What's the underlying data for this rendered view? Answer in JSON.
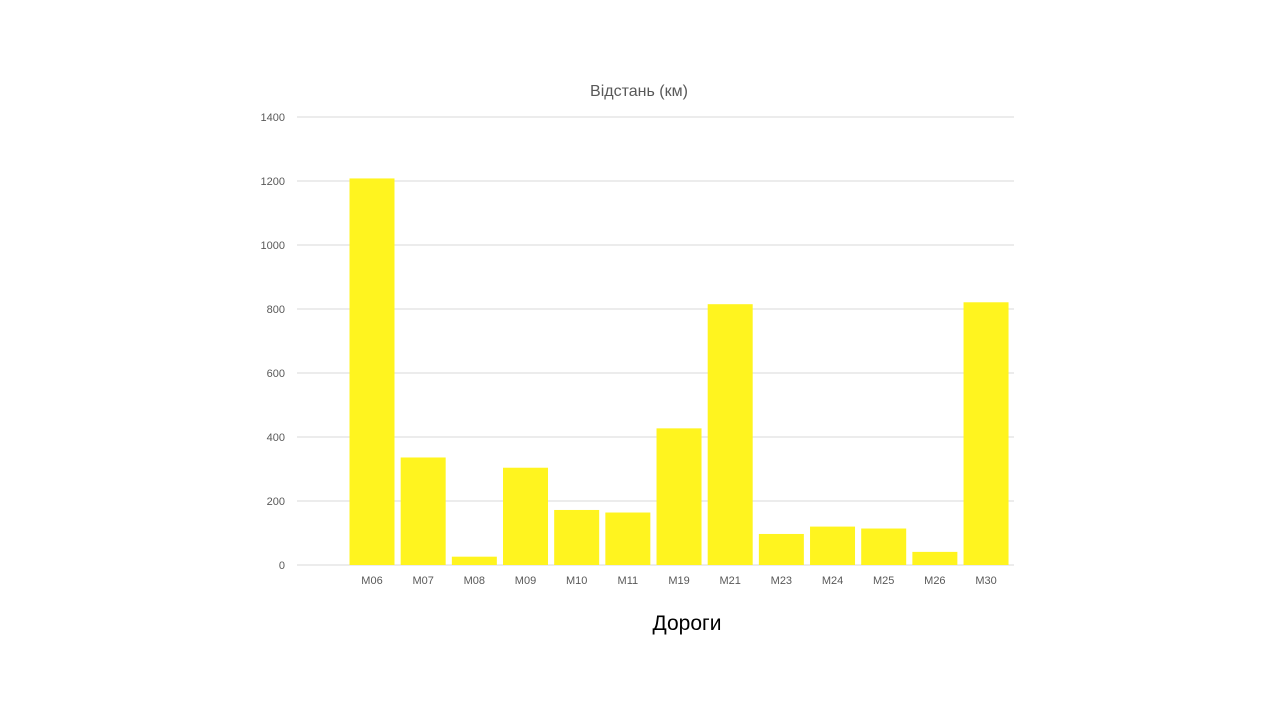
{
  "chart_data": {
    "type": "bar",
    "title": "Відстань (км)",
    "xlabel": "Дороги",
    "ylabel": "",
    "ylim": [
      0,
      1400
    ],
    "yticks": [
      "0",
      "200",
      "400",
      "600",
      "800",
      "1000",
      "1200",
      "1400"
    ],
    "grid": true,
    "categories": [
      "М06",
      "М07",
      "М08",
      "М09",
      "М10",
      "М11",
      "М19",
      "М21",
      "М23",
      "М24",
      "М25",
      "М26",
      "М30"
    ],
    "values": [
      1208,
      336,
      26,
      304,
      172,
      164,
      427,
      815,
      97,
      120,
      114,
      41,
      821
    ],
    "bar_color": "#FFF41F"
  }
}
